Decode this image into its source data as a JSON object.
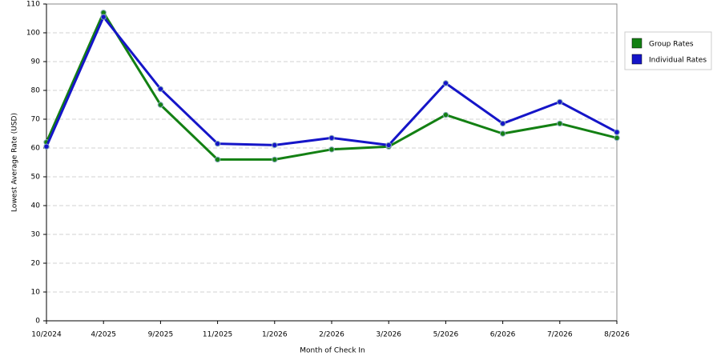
{
  "chart_data": {
    "type": "line",
    "x_label": "Month of Check In",
    "y_label": "Lowest Average Rate (USD)",
    "categories": [
      "10/2024",
      "4/2025",
      "9/2025",
      "11/2025",
      "1/2026",
      "2/2026",
      "3/2026",
      "5/2026",
      "6/2026",
      "7/2026",
      "8/2026"
    ],
    "series": [
      {
        "name": "Group Rates",
        "color": "#138013",
        "values": [
          62,
          107,
          75,
          56,
          56,
          59.5,
          60.5,
          71.5,
          65,
          68.5,
          63.5
        ]
      },
      {
        "name": "Individual Rates",
        "color": "#1515c8",
        "values": [
          60.5,
          105.5,
          80.5,
          61.5,
          61,
          63.5,
          61,
          82.5,
          68.5,
          76,
          65.5
        ]
      }
    ],
    "ylim": [
      0,
      110
    ],
    "yticks": [
      0,
      10,
      20,
      30,
      40,
      50,
      60,
      70,
      80,
      90,
      100,
      110
    ],
    "grid": true,
    "legend": "right"
  }
}
